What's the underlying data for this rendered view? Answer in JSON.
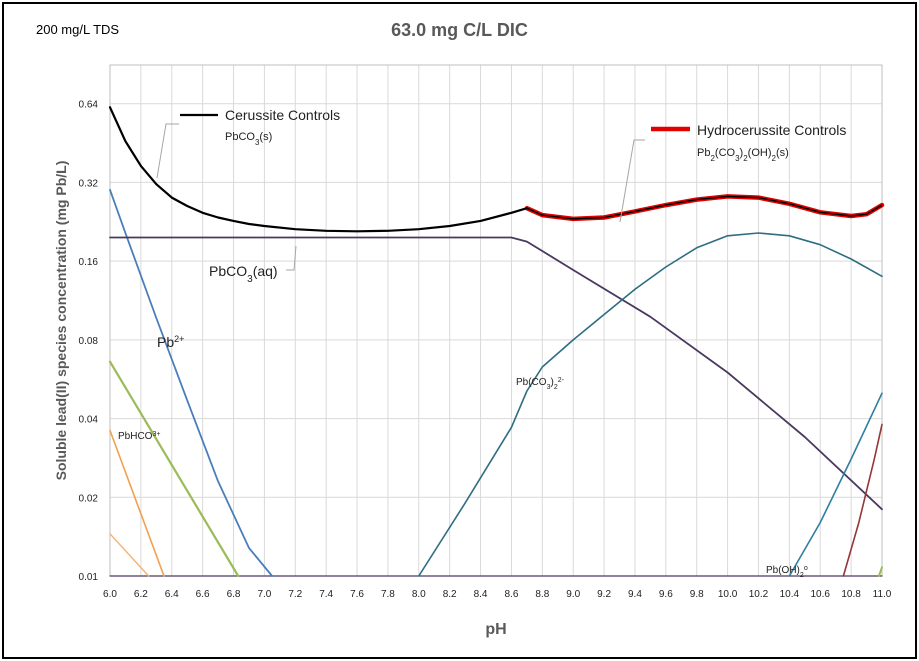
{
  "note": "200 mg/L TDS",
  "chart_data": {
    "type": "line",
    "title": "63.0 mg C/L DIC",
    "xlabel": "pH",
    "ylabel": "Soluble lead(II) species concentration (mg Pb/L)",
    "yscale": "log2",
    "xlim": [
      6.0,
      11.0
    ],
    "ylim": [
      0.01,
      0.9
    ],
    "x_ticks": [
      "6.0",
      "6.2",
      "6.4",
      "6.6",
      "6.8",
      "7.0",
      "7.2",
      "7.4",
      "7.6",
      "7.8",
      "8.0",
      "8.2",
      "8.4",
      "8.6",
      "8.8",
      "9.0",
      "9.2",
      "9.4",
      "9.6",
      "9.8",
      "10.0",
      "10.2",
      "10.4",
      "10.6",
      "10.8",
      "11.0"
    ],
    "y_ticks": [
      {
        "value": 0.01,
        "label": "0.01"
      },
      {
        "value": 0.02,
        "label": "0.02"
      },
      {
        "value": 0.04,
        "label": "0.04"
      },
      {
        "value": 0.08,
        "label": "0.08"
      },
      {
        "value": 0.16,
        "label": "0.16"
      },
      {
        "value": 0.32,
        "label": "0.32"
      },
      {
        "value": 0.64,
        "label": "0.64"
      }
    ],
    "grid": true,
    "legend": [
      {
        "main": "Cerussite Controls",
        "base": "PbCO",
        "sub": "3",
        "tail": "(s)",
        "color": "#000000"
      },
      {
        "main": "Hydrocerussite Controls",
        "base": "Pb",
        "sub": "2",
        "mid": "(CO",
        "sub2": "3",
        "mid2": ")",
        "sub3": "2",
        "mid3": "(OH)",
        "sub4": "2",
        "tail": "(s)",
        "color": "#e00000"
      }
    ],
    "labels": {
      "pbco3aq": {
        "base": "PbCO",
        "sub": "3",
        "tail": "(aq)"
      },
      "pb2": {
        "base": "Pb",
        "sup": "2+"
      },
      "pbhco3": {
        "base": "PbHCO",
        "sup": "3+"
      },
      "pbco32": {
        "base": "Pb(CO",
        "sub": "3",
        "mid": ")",
        "sub2": "2",
        "sup": "2-"
      },
      "pboh2": {
        "base": "Pb(OH)",
        "sub": "2",
        "sup": "o"
      }
    },
    "series": [
      {
        "id": "total-cerussite",
        "color": "#000000",
        "width": 2.2,
        "x": [
          6.0,
          6.1,
          6.2,
          6.3,
          6.4,
          6.5,
          6.6,
          6.7,
          6.8,
          6.9,
          7.0,
          7.2,
          7.4,
          7.6,
          7.8,
          8.0,
          8.2,
          8.4,
          8.6,
          8.7
        ],
        "y": [
          0.62,
          0.46,
          0.37,
          0.315,
          0.28,
          0.26,
          0.245,
          0.235,
          0.228,
          0.222,
          0.218,
          0.212,
          0.209,
          0.208,
          0.209,
          0.212,
          0.218,
          0.228,
          0.245,
          0.255
        ]
      },
      {
        "id": "total-hydrocerussite",
        "color": "#e00000",
        "width": 4.5,
        "x": [
          8.7,
          8.8,
          9.0,
          9.2,
          9.4,
          9.6,
          9.8,
          10.0,
          10.2,
          10.4,
          10.6,
          10.8,
          10.9,
          11.0
        ],
        "y": [
          0.255,
          0.24,
          0.232,
          0.235,
          0.248,
          0.262,
          0.275,
          0.283,
          0.28,
          0.265,
          0.246,
          0.238,
          0.242,
          0.262
        ]
      },
      {
        "id": "pbco3-aq",
        "color": "#4a3860",
        "width": 1.8,
        "x": [
          6.0,
          6.5,
          7.0,
          7.5,
          8.0,
          8.5,
          8.6,
          8.7,
          8.8,
          9.0,
          9.5,
          10.0,
          10.5,
          11.0
        ],
        "y": [
          0.197,
          0.197,
          0.197,
          0.197,
          0.197,
          0.197,
          0.197,
          0.19,
          0.175,
          0.148,
          0.098,
          0.06,
          0.034,
          0.018
        ]
      },
      {
        "id": "pb2plus",
        "color": "#4a7ebb",
        "width": 1.8,
        "x": [
          6.0,
          6.1,
          6.3,
          6.5,
          6.7,
          6.9,
          7.05
        ],
        "y": [
          0.3,
          0.205,
          0.097,
          0.047,
          0.023,
          0.0128,
          0.01
        ]
      },
      {
        "id": "pbhco3plus",
        "color": "#9bbb59",
        "width": 2.2,
        "x": [
          6.0,
          6.83
        ],
        "y": [
          0.066,
          0.01
        ]
      },
      {
        "id": "orange-1",
        "color": "#f0a050",
        "width": 1.6,
        "x": [
          6.0,
          6.35
        ],
        "y": [
          0.036,
          0.01
        ]
      },
      {
        "id": "orange-2",
        "color": "#f5b070",
        "width": 1.4,
        "x": [
          6.0,
          6.25
        ],
        "y": [
          0.0145,
          0.01
        ]
      },
      {
        "id": "pbco3-2",
        "color": "#2e6e82",
        "width": 1.6,
        "x": [
          8.0,
          8.3,
          8.6,
          8.7,
          8.8,
          9.0,
          9.2,
          9.4,
          9.6,
          9.8,
          10.0,
          10.2,
          10.4,
          10.6,
          10.8,
          11.0
        ],
        "y": [
          0.01,
          0.019,
          0.037,
          0.051,
          0.063,
          0.08,
          0.1,
          0.125,
          0.152,
          0.18,
          0.2,
          0.205,
          0.2,
          0.185,
          0.163,
          0.14
        ]
      },
      {
        "id": "pboh2",
        "color": "#2e7ea0",
        "width": 1.6,
        "x": [
          10.4,
          10.6,
          10.8,
          11.0
        ],
        "y": [
          0.01,
          0.016,
          0.028,
          0.05
        ]
      },
      {
        "id": "brown",
        "color": "#943634",
        "width": 1.6,
        "x": [
          10.75,
          10.85,
          10.95,
          11.0
        ],
        "y": [
          0.01,
          0.016,
          0.028,
          0.038
        ]
      },
      {
        "id": "zero-baseline",
        "color": "#4a3860",
        "width": 1.2,
        "x": [
          6.0,
          11.0
        ],
        "y": [
          0.01,
          0.01
        ]
      },
      {
        "id": "green-tail",
        "color": "#9bbb59",
        "width": 2,
        "x": [
          10.98,
          11.0
        ],
        "y": [
          0.01,
          0.0108
        ]
      }
    ]
  }
}
